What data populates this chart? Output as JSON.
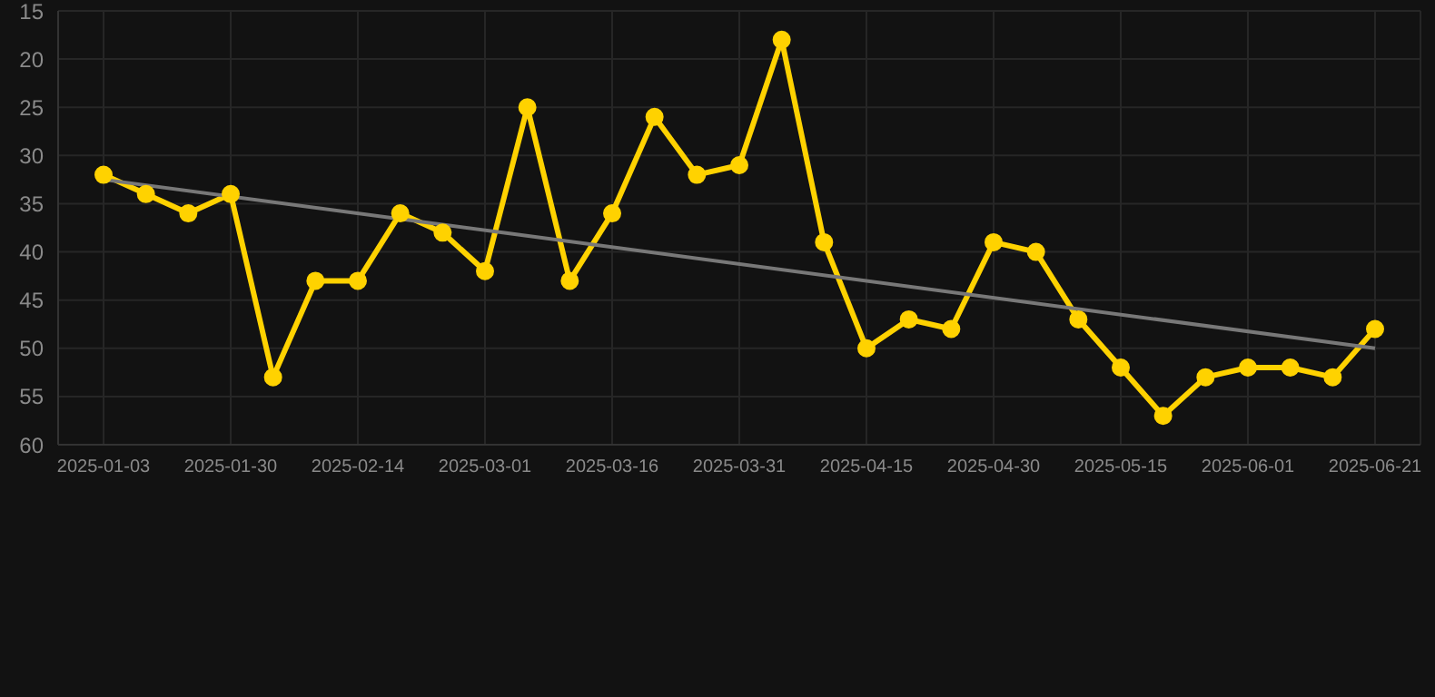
{
  "chart_data": {
    "type": "line",
    "categories": [
      "2025-01-03",
      null,
      null,
      "2025-01-30",
      null,
      null,
      "2025-02-14",
      null,
      null,
      "2025-03-01",
      null,
      null,
      "2025-03-16",
      null,
      null,
      "2025-03-31",
      null,
      null,
      "2025-04-15",
      null,
      null,
      "2025-04-30",
      null,
      null,
      "2025-05-15",
      null,
      null,
      "2025-06-01",
      null,
      null,
      "2025-06-21"
    ],
    "series": [
      {
        "color": "#ffd200",
        "marker": "circle",
        "values": [
          32,
          34,
          36,
          34,
          53,
          43,
          43,
          36,
          38,
          42,
          25,
          43,
          36,
          26,
          32,
          31,
          18,
          39,
          50,
          47,
          48,
          39,
          40,
          47,
          52,
          57,
          53,
          52,
          52,
          53,
          48
        ]
      },
      {
        "type": "line",
        "color": "#787878",
        "marker": "none",
        "values": [
          32.5,
          null,
          null,
          null,
          null,
          null,
          null,
          null,
          null,
          null,
          null,
          null,
          null,
          null,
          null,
          null,
          null,
          null,
          null,
          null,
          null,
          null,
          null,
          null,
          null,
          null,
          null,
          null,
          null,
          null,
          50
        ]
      }
    ],
    "ylim": [
      60,
      15
    ],
    "yticks": [
      15,
      20,
      25,
      30,
      35,
      40,
      45,
      50,
      55,
      60
    ],
    "grid": true,
    "line_style": "solid"
  }
}
